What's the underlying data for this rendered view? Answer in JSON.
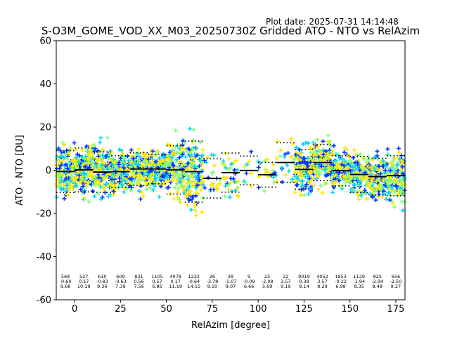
{
  "header": {
    "plot_date": "Plot date: 2025-07-31 14:14:48",
    "title": "S-O3M_GOME_VOD_XX_M03_20250730Z Gridded ATO - NTO vs RelAzim"
  },
  "colors": {
    "scatter": [
      "#0033ff",
      "#00d5ff",
      "#7dff7a",
      "#ffe600",
      "#ffe600"
    ],
    "mean": "#000000",
    "std": "#000000"
  },
  "chart_data": {
    "type": "scatter",
    "title": "S-O3M_GOME_VOD_XX_M03_20250730Z Gridded ATO - NTO vs RelAzim",
    "xlabel": "RelAzim [degree]",
    "ylabel": "ATO - NTO [DU]",
    "xlim": [
      -10,
      180
    ],
    "ylim": [
      -60,
      60
    ],
    "xticks": [
      0,
      25,
      50,
      75,
      100,
      125,
      150,
      175
    ],
    "yticks": [
      -60,
      -40,
      -20,
      0,
      20,
      40,
      60
    ],
    "grid": false,
    "legend": "none",
    "marker": "+",
    "bins": [
      {
        "center": -5,
        "count": "568",
        "mean": "-0.60",
        "std": "9.68"
      },
      {
        "center": 5,
        "count": "527",
        "mean": "0.17",
        "std": "10.19"
      },
      {
        "center": 15,
        "count": "610",
        "mean": "-0.83",
        "std": "9.36"
      },
      {
        "center": 25,
        "count": "609",
        "mean": "-0.63",
        "std": "7.39"
      },
      {
        "center": 35,
        "count": "831",
        "mean": "0.56",
        "std": "7.56"
      },
      {
        "center": 45,
        "count": "1105",
        "mean": "0.57",
        "std": "6.86"
      },
      {
        "center": 55,
        "count": "4078",
        "mean": "0.17",
        "std": "11.19"
      },
      {
        "center": 65,
        "count": "1232",
        "mean": "-0.64",
        "std": "14.15"
      },
      {
        "center": 75,
        "count": "26",
        "mean": "-3.78",
        "std": "9.10"
      },
      {
        "center": 85,
        "count": "39",
        "mean": "-1.07",
        "std": "9.07"
      },
      {
        "center": 95,
        "count": "9",
        "mean": "-0.09",
        "std": "6.66"
      },
      {
        "center": 105,
        "count": "25",
        "mean": "-2.08",
        "std": "5.69"
      },
      {
        "center": 115,
        "count": "22",
        "mean": "3.57",
        "std": "9.19"
      },
      {
        "center": 125,
        "count": "9019",
        "mean": "0.38",
        "std": "9.14"
      },
      {
        "center": 135,
        "count": "4052",
        "mean": "3.57",
        "std": "8.29"
      },
      {
        "center": 145,
        "count": "1853",
        "mean": "-0.22",
        "std": "6.98"
      },
      {
        "center": 155,
        "count": "1129",
        "mean": "-1.94",
        "std": "8.35"
      },
      {
        "center": 165,
        "count": "825",
        "mean": "-2.94",
        "std": "8.48"
      },
      {
        "center": 175,
        "count": "656",
        "mean": "-2.50",
        "std": "9.27"
      }
    ]
  }
}
